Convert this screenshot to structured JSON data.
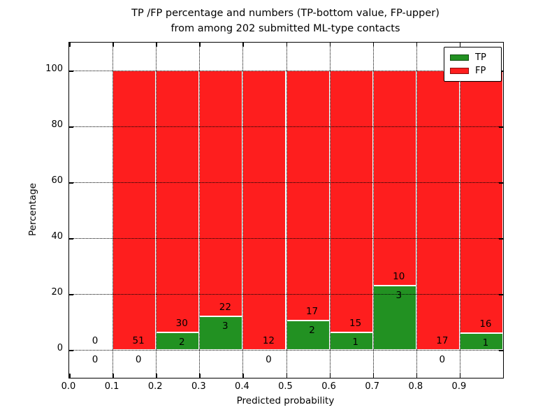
{
  "chart_data": {
    "type": "bar",
    "stacked": true,
    "title_line1": "TP /FP percentage and numbers (TP-bottom value, FP-upper)",
    "title_line2": "from among 202 submitted ML-type contacts",
    "xlabel": "Predicted probability",
    "ylabel": "Percentage",
    "total_contacts": 202,
    "xlim": [
      0.0,
      1.0
    ],
    "ylim": [
      -10,
      110
    ],
    "x_ticks": [
      0.0,
      0.1,
      0.2,
      0.3,
      0.4,
      0.5,
      0.6,
      0.7,
      0.8,
      0.9
    ],
    "x_tick_labels": [
      "0.0",
      "0.1",
      "0.2",
      "0.3",
      "0.4",
      "0.5",
      "0.6",
      "0.7",
      "0.8",
      "0.9"
    ],
    "y_ticks": [
      0,
      20,
      40,
      60,
      80,
      100
    ],
    "y_tick_labels": [
      "0",
      "20",
      "40",
      "60",
      "80",
      "100"
    ],
    "grid": "dotted",
    "bin_width": 0.1,
    "bins": [
      {
        "start": 0.0,
        "end": 0.1,
        "tp": 0,
        "fp": 0
      },
      {
        "start": 0.1,
        "end": 0.2,
        "tp": 0,
        "fp": 51
      },
      {
        "start": 0.2,
        "end": 0.3,
        "tp": 2,
        "fp": 30
      },
      {
        "start": 0.3,
        "end": 0.4,
        "tp": 3,
        "fp": 22
      },
      {
        "start": 0.4,
        "end": 0.5,
        "tp": 0,
        "fp": 12
      },
      {
        "start": 0.5,
        "end": 0.6,
        "tp": 2,
        "fp": 17
      },
      {
        "start": 0.6,
        "end": 0.7,
        "tp": 1,
        "fp": 15
      },
      {
        "start": 0.7,
        "end": 0.8,
        "tp": 3,
        "fp": 10
      },
      {
        "start": 0.8,
        "end": 0.9,
        "tp": 0,
        "fp": 17
      },
      {
        "start": 0.9,
        "end": 1.0,
        "tp": 1,
        "fp": 16
      }
    ],
    "legend": {
      "position": "upper right",
      "items": [
        {
          "label": "TP",
          "color": "#229122"
        },
        {
          "label": "FP",
          "color": "#fe1e1e"
        }
      ]
    },
    "colors": {
      "tp": "#229122",
      "fp": "#fe1e1e",
      "bar_edge": "#ffffff",
      "grid": "#000000",
      "spine": "#000000",
      "background": "#ffffff"
    }
  }
}
